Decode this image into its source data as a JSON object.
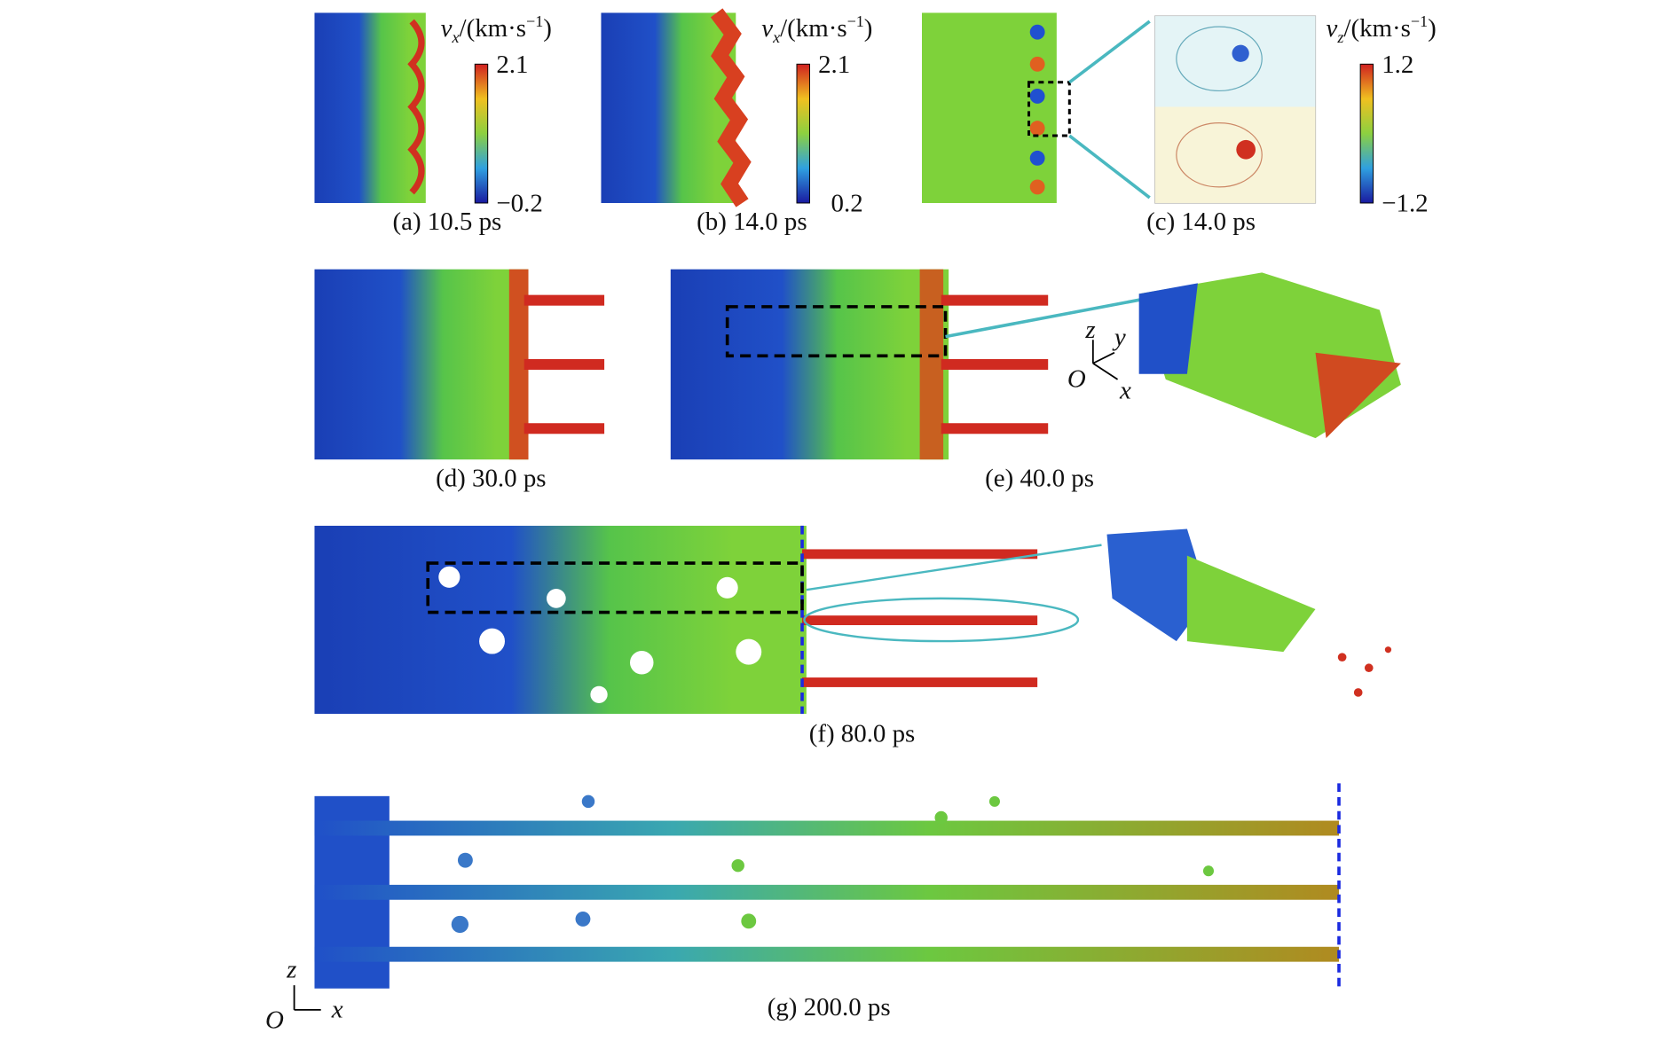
{
  "panels": [
    {
      "caption": "(a) 10.5 ps"
    },
    {
      "caption": "(b) 14.0 ps"
    },
    {
      "caption": "(c) 14.0 ps"
    },
    {
      "caption": "(d) 30.0 ps"
    },
    {
      "caption": "(e) 40.0 ps"
    },
    {
      "caption": "(f) 80.0 ps"
    },
    {
      "caption": "(g) 200.0 ps"
    }
  ],
  "colorbars": [
    {
      "symbol": "v",
      "subscript": "x",
      "unit": "/(km·s",
      "power": "−1",
      "close": ")",
      "max": "2.1",
      "min": "−0.2"
    },
    {
      "symbol": "v",
      "subscript": "x",
      "unit": "/(km·s",
      "power": "−1",
      "close": ")",
      "max": "2.1",
      "min": "0.2"
    },
    {
      "symbol": "v",
      "subscript": "z",
      "unit": "/(km·s",
      "power": "−1",
      "close": ")",
      "max": "1.2",
      "min": "−1.2"
    }
  ],
  "axes_e": {
    "z": "z",
    "y": "y",
    "origin": "O",
    "x": "x"
  },
  "axes_g": {
    "z": "z",
    "origin": "O",
    "x": "x"
  }
}
